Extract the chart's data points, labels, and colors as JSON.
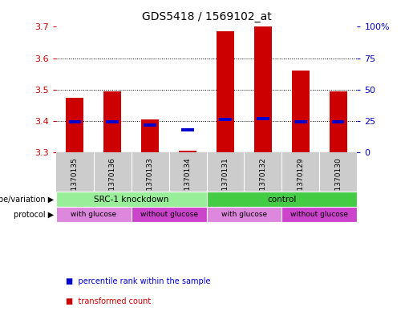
{
  "title": "GDS5418 / 1569102_at",
  "samples": [
    "GSM1370135",
    "GSM1370136",
    "GSM1370133",
    "GSM1370134",
    "GSM1370131",
    "GSM1370132",
    "GSM1370129",
    "GSM1370130"
  ],
  "bar_values": [
    3.475,
    3.495,
    3.405,
    3.305,
    3.685,
    3.7,
    3.56,
    3.495
  ],
  "bar_base": 3.3,
  "percentile_values": [
    3.397,
    3.397,
    3.387,
    3.373,
    3.405,
    3.408,
    3.398,
    3.397
  ],
  "ylim": [
    3.3,
    3.7
  ],
  "yticks_left": [
    3.3,
    3.4,
    3.5,
    3.6,
    3.7
  ],
  "yticks_right_pct": [
    0,
    25,
    50,
    75,
    100
  ],
  "yticks_right_labels": [
    "0",
    "25",
    "50",
    "75",
    "100%"
  ],
  "bar_color": "#cc0000",
  "percentile_color": "#0000cc",
  "plot_bg": "#ffffff",
  "sample_bg": "#cccccc",
  "genotype_colors": [
    "#99ee99",
    "#44cc44"
  ],
  "protocol_colors": [
    "#dd88dd",
    "#cc44cc"
  ],
  "left_label_color": "#cc0000",
  "right_label_color": "#0000cc",
  "figsize": [
    5.15,
    3.93
  ],
  "dpi": 100,
  "genotype_groups": [
    {
      "label": "SRC-1 knockdown",
      "start": 0,
      "end": 4,
      "color": "#99ee99"
    },
    {
      "label": "control",
      "start": 4,
      "end": 8,
      "color": "#44cc44"
    }
  ],
  "protocol_groups": [
    {
      "label": "with glucose",
      "start": 0,
      "end": 2,
      "color": "#dd88dd"
    },
    {
      "label": "without glucose",
      "start": 2,
      "end": 4,
      "color": "#cc44cc"
    },
    {
      "label": "with glucose",
      "start": 4,
      "end": 6,
      "color": "#dd88dd"
    },
    {
      "label": "without glucose",
      "start": 6,
      "end": 8,
      "color": "#cc44cc"
    }
  ],
  "legend_items": [
    {
      "label": "transformed count",
      "color": "#cc0000"
    },
    {
      "label": "percentile rank within the sample",
      "color": "#0000cc"
    }
  ]
}
